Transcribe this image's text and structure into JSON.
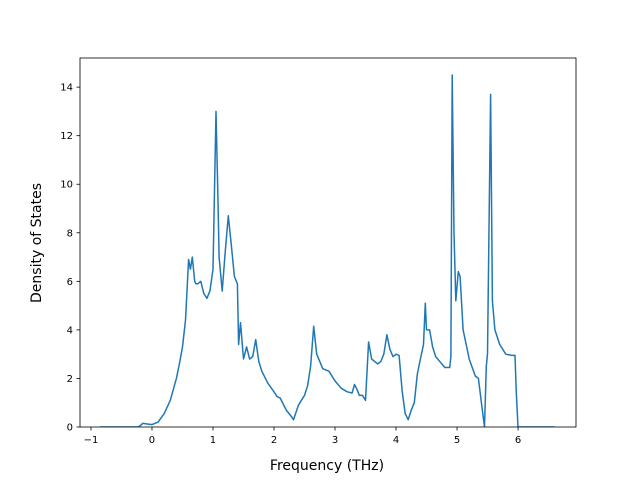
{
  "chart_data": {
    "type": "line",
    "title": "",
    "xlabel": "Frequency (THz)",
    "ylabel": "Density of States",
    "xlim": [
      -1.18,
      6.95
    ],
    "ylim": [
      0,
      15.2
    ],
    "x_ticks": [
      -1,
      0,
      1,
      2,
      3,
      4,
      5,
      6
    ],
    "x_tick_labels": [
      "−1",
      "0",
      "1",
      "2",
      "3",
      "4",
      "5",
      "6"
    ],
    "y_ticks": [
      0,
      2,
      4,
      6,
      8,
      10,
      12,
      14
    ],
    "y_tick_labels": [
      "0",
      "2",
      "4",
      "6",
      "8",
      "10",
      "12",
      "14"
    ],
    "grid": false,
    "series_color": "#1f77b4",
    "series": [
      {
        "x": [
          -0.85,
          -0.22,
          -0.15,
          0,
          0.1,
          0.2,
          0.3,
          0.4,
          0.45,
          0.5,
          0.55,
          0.6,
          0.63,
          0.66,
          0.7,
          0.72,
          0.75,
          0.8,
          0.85,
          0.9,
          0.95,
          1.0,
          1.05,
          1.08,
          1.1,
          1.15,
          1.2,
          1.25,
          1.3,
          1.35,
          1.4,
          1.42,
          1.45,
          1.5,
          1.55,
          1.6,
          1.65,
          1.7,
          1.75,
          1.8,
          1.9,
          2.0,
          2.05,
          2.1,
          2.2,
          2.28,
          2.32,
          2.4,
          2.5,
          2.55,
          2.6,
          2.65,
          2.7,
          2.8,
          2.9,
          3.0,
          3.1,
          3.2,
          3.28,
          3.32,
          3.35,
          3.4,
          3.45,
          3.5,
          3.55,
          3.6,
          3.7,
          3.75,
          3.8,
          3.85,
          3.9,
          3.95,
          4.0,
          4.05,
          4.1,
          4.15,
          4.2,
          4.25,
          4.3,
          4.35,
          4.4,
          4.45,
          4.48,
          4.5,
          4.55,
          4.6,
          4.65,
          4.7,
          4.8,
          4.88,
          4.9,
          4.92,
          4.95,
          4.98,
          5.02,
          5.05,
          5.1,
          5.15,
          5.2,
          5.3,
          5.35,
          5.4,
          5.45,
          5.48,
          5.5,
          5.55,
          5.58,
          5.62,
          5.7,
          5.8,
          5.9,
          5.95,
          5.97,
          6.0,
          6.6
        ],
        "y": [
          0.0,
          0.0,
          0.15,
          0.1,
          0.2,
          0.55,
          1.1,
          2.0,
          2.6,
          3.3,
          4.4,
          6.9,
          6.5,
          7.0,
          6.0,
          5.9,
          5.9,
          6.0,
          5.5,
          5.3,
          5.6,
          6.5,
          13.0,
          9.5,
          7.0,
          5.6,
          7.2,
          8.7,
          7.5,
          6.2,
          5.9,
          3.4,
          4.3,
          2.8,
          3.3,
          2.8,
          2.9,
          3.6,
          2.7,
          2.3,
          1.8,
          1.45,
          1.25,
          1.2,
          0.7,
          0.45,
          0.3,
          0.9,
          1.3,
          1.7,
          2.5,
          4.15,
          3.0,
          2.4,
          2.3,
          1.9,
          1.6,
          1.45,
          1.4,
          1.75,
          1.6,
          1.3,
          1.3,
          1.1,
          3.5,
          2.8,
          2.6,
          2.7,
          3.0,
          3.8,
          3.2,
          2.9,
          3.0,
          2.95,
          1.5,
          0.55,
          0.3,
          0.7,
          1.0,
          2.2,
          2.8,
          3.4,
          5.1,
          4.0,
          4.0,
          3.3,
          2.9,
          2.75,
          2.45,
          2.45,
          2.9,
          14.5,
          8.0,
          5.2,
          6.4,
          6.2,
          4.0,
          3.4,
          2.8,
          2.1,
          2.0,
          1.0,
          0.0,
          2.5,
          3.0,
          13.7,
          5.2,
          4.0,
          3.4,
          3.0,
          2.95,
          2.95,
          1.5,
          0.0,
          0.0
        ]
      }
    ]
  }
}
